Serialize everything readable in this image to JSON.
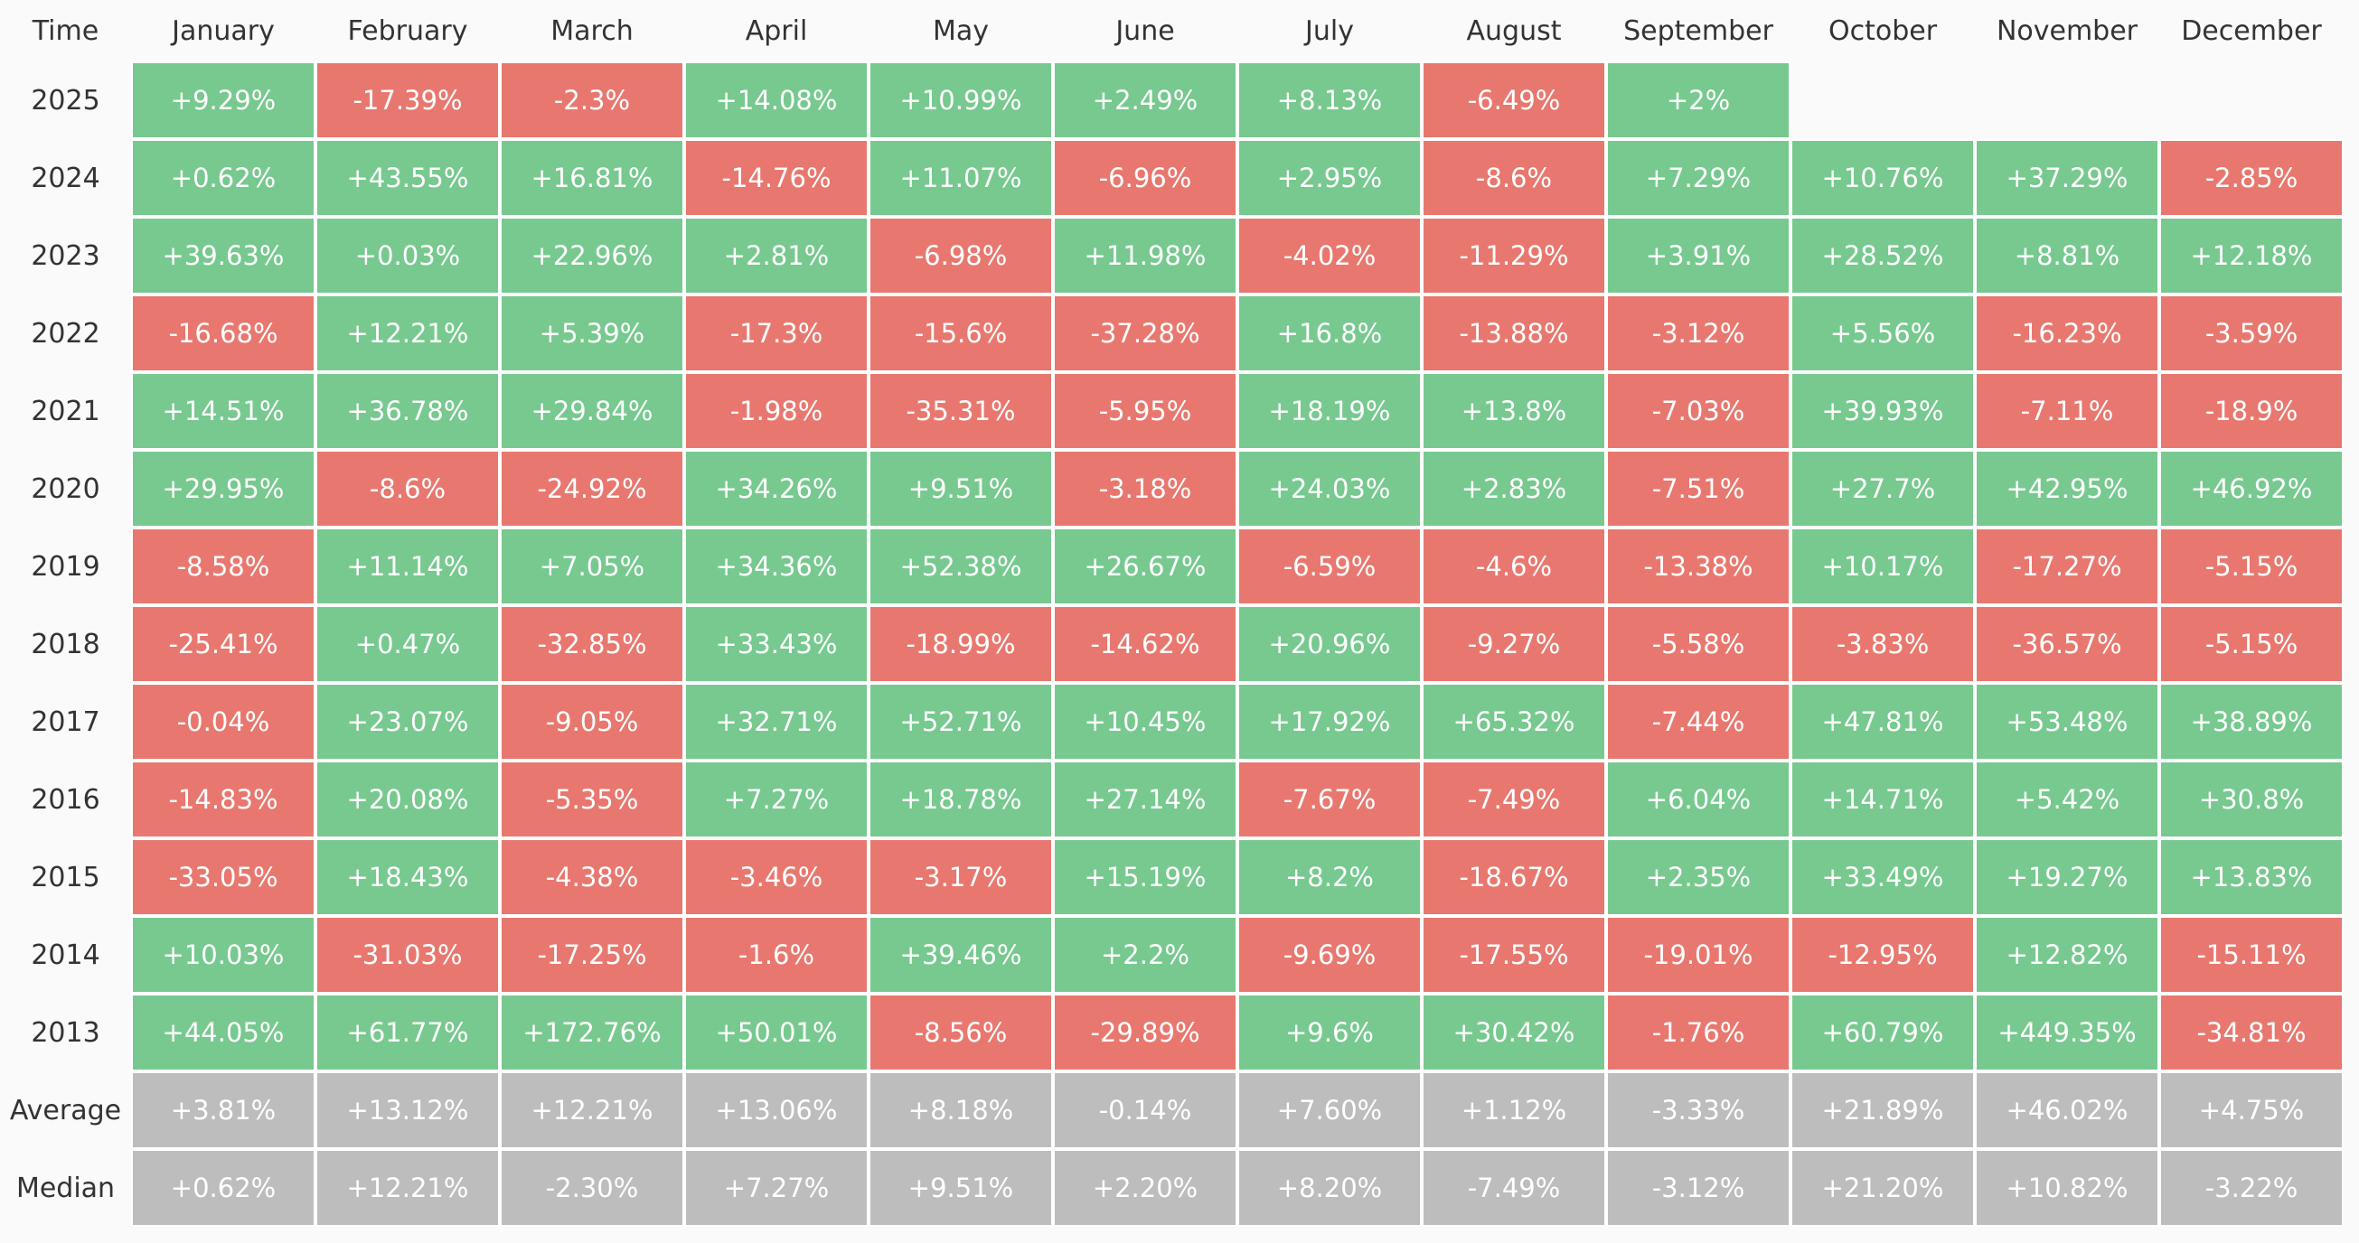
{
  "table": {
    "header": [
      "Time",
      "January",
      "February",
      "March",
      "April",
      "May",
      "June",
      "July",
      "August",
      "September",
      "October",
      "November",
      "December"
    ],
    "colors": {
      "gain": "#77c98f",
      "loss": "#e8786f",
      "summary": "#bdbdbd"
    },
    "rows": [
      {
        "label": "2025",
        "cells": [
          "+9.29%",
          "-17.39%",
          "-2.3%",
          "+14.08%",
          "+10.99%",
          "+2.49%",
          "+8.13%",
          "-6.49%",
          "+2%"
        ]
      },
      {
        "label": "2024",
        "cells": [
          "+0.62%",
          "+43.55%",
          "+16.81%",
          "-14.76%",
          "+11.07%",
          "-6.96%",
          "+2.95%",
          "-8.6%",
          "+7.29%",
          "+10.76%",
          "+37.29%",
          "-2.85%"
        ]
      },
      {
        "label": "2023",
        "cells": [
          "+39.63%",
          "+0.03%",
          "+22.96%",
          "+2.81%",
          "-6.98%",
          "+11.98%",
          "-4.02%",
          "-11.29%",
          "+3.91%",
          "+28.52%",
          "+8.81%",
          "+12.18%"
        ]
      },
      {
        "label": "2022",
        "cells": [
          "-16.68%",
          "+12.21%",
          "+5.39%",
          "-17.3%",
          "-15.6%",
          "-37.28%",
          "+16.8%",
          "-13.88%",
          "-3.12%",
          "+5.56%",
          "-16.23%",
          "-3.59%"
        ]
      },
      {
        "label": "2021",
        "cells": [
          "+14.51%",
          "+36.78%",
          "+29.84%",
          "-1.98%",
          "-35.31%",
          "-5.95%",
          "+18.19%",
          "+13.8%",
          "-7.03%",
          "+39.93%",
          "-7.11%",
          "-18.9%"
        ]
      },
      {
        "label": "2020",
        "cells": [
          "+29.95%",
          "-8.6%",
          "-24.92%",
          "+34.26%",
          "+9.51%",
          "-3.18%",
          "+24.03%",
          "+2.83%",
          "-7.51%",
          "+27.7%",
          "+42.95%",
          "+46.92%"
        ]
      },
      {
        "label": "2019",
        "cells": [
          "-8.58%",
          "+11.14%",
          "+7.05%",
          "+34.36%",
          "+52.38%",
          "+26.67%",
          "-6.59%",
          "-4.6%",
          "-13.38%",
          "+10.17%",
          "-17.27%",
          "-5.15%"
        ]
      },
      {
        "label": "2018",
        "cells": [
          "-25.41%",
          "+0.47%",
          "-32.85%",
          "+33.43%",
          "-18.99%",
          "-14.62%",
          "+20.96%",
          "-9.27%",
          "-5.58%",
          "-3.83%",
          "-36.57%",
          "-5.15%"
        ]
      },
      {
        "label": "2017",
        "cells": [
          "-0.04%",
          "+23.07%",
          "-9.05%",
          "+32.71%",
          "+52.71%",
          "+10.45%",
          "+17.92%",
          "+65.32%",
          "-7.44%",
          "+47.81%",
          "+53.48%",
          "+38.89%"
        ]
      },
      {
        "label": "2016",
        "cells": [
          "-14.83%",
          "+20.08%",
          "-5.35%",
          "+7.27%",
          "+18.78%",
          "+27.14%",
          "-7.67%",
          "-7.49%",
          "+6.04%",
          "+14.71%",
          "+5.42%",
          "+30.8%"
        ]
      },
      {
        "label": "2015",
        "cells": [
          "-33.05%",
          "+18.43%",
          "-4.38%",
          "-3.46%",
          "-3.17%",
          "+15.19%",
          "+8.2%",
          "-18.67%",
          "+2.35%",
          "+33.49%",
          "+19.27%",
          "+13.83%"
        ]
      },
      {
        "label": "2014",
        "cells": [
          "+10.03%",
          "-31.03%",
          "-17.25%",
          "-1.6%",
          "+39.46%",
          "+2.2%",
          "-9.69%",
          "-17.55%",
          "-19.01%",
          "-12.95%",
          "+12.82%",
          "-15.11%"
        ]
      },
      {
        "label": "2013",
        "cells": [
          "+44.05%",
          "+61.77%",
          "+172.76%",
          "+50.01%",
          "-8.56%",
          "-29.89%",
          "+9.6%",
          "+30.42%",
          "-1.76%",
          "+60.79%",
          "+449.35%",
          "-34.81%"
        ]
      }
    ],
    "summary": [
      {
        "label": "Average",
        "cells": [
          "+3.81%",
          "+13.12%",
          "+12.21%",
          "+13.06%",
          "+8.18%",
          "-0.14%",
          "+7.60%",
          "+1.12%",
          "-3.33%",
          "+21.89%",
          "+46.02%",
          "+4.75%"
        ]
      },
      {
        "label": "Median",
        "cells": [
          "+0.62%",
          "+12.21%",
          "-2.30%",
          "+7.27%",
          "+9.51%",
          "+2.20%",
          "+8.20%",
          "-7.49%",
          "-3.12%",
          "+21.20%",
          "+10.82%",
          "-3.22%"
        ]
      }
    ]
  }
}
